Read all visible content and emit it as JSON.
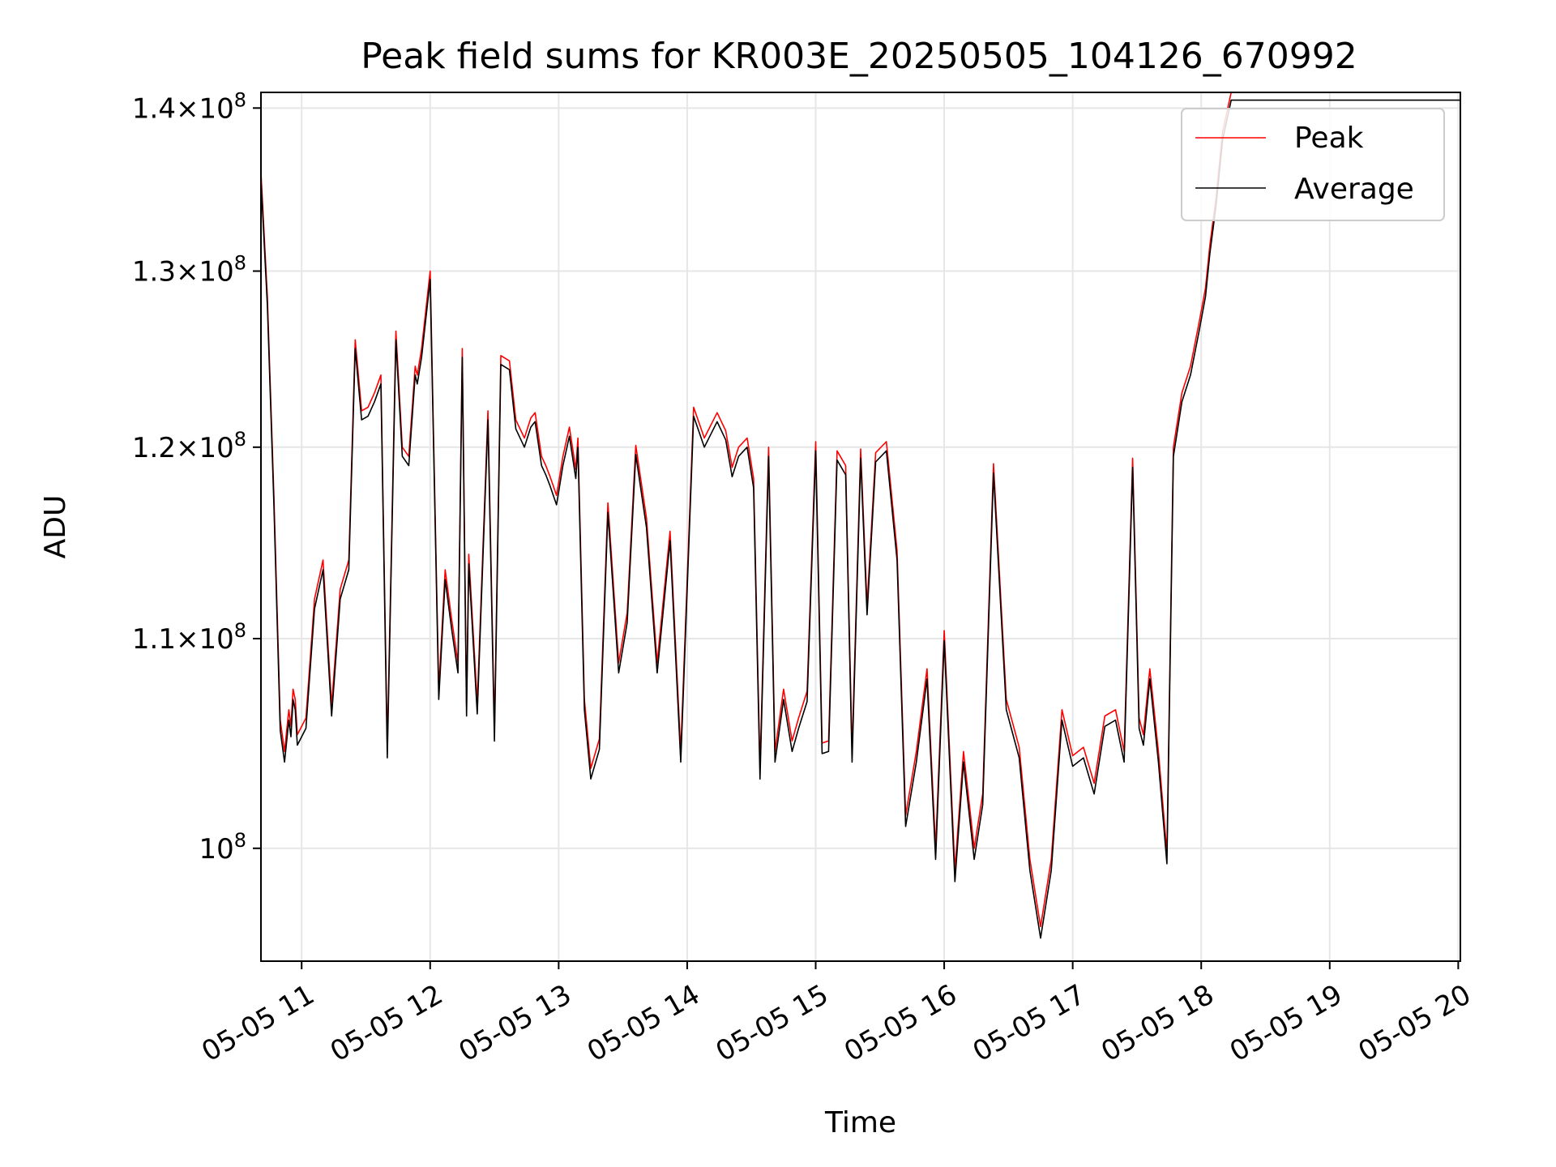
{
  "chart_data": {
    "type": "line",
    "title": "Peak field sums for KR003E_20250505_104126_670992",
    "xlabel": "Time",
    "ylabel": "ADU",
    "y_scale": "log",
    "grid": true,
    "legend_position": "top-right",
    "xlim": [
      "2025-05-05T10:41",
      "2025-05-05T20:01"
    ],
    "ylim": [
      95000000,
      141000000
    ],
    "x_ticks": [
      {
        "t": "2025-05-05T11:00",
        "label": "05-05 11"
      },
      {
        "t": "2025-05-05T12:00",
        "label": "05-05 12"
      },
      {
        "t": "2025-05-05T13:00",
        "label": "05-05 13"
      },
      {
        "t": "2025-05-05T14:00",
        "label": "05-05 14"
      },
      {
        "t": "2025-05-05T15:00",
        "label": "05-05 15"
      },
      {
        "t": "2025-05-05T16:00",
        "label": "05-05 16"
      },
      {
        "t": "2025-05-05T17:00",
        "label": "05-05 17"
      },
      {
        "t": "2025-05-05T18:00",
        "label": "05-05 18"
      },
      {
        "t": "2025-05-05T19:00",
        "label": "05-05 19"
      },
      {
        "t": "2025-05-05T20:00",
        "label": "05-05 20"
      }
    ],
    "y_ticks": [
      {
        "value": 100000000,
        "mant": "",
        "exp": "8"
      },
      {
        "value": 110000000,
        "mant": "1.1",
        "exp": "8"
      },
      {
        "value": 120000000,
        "mant": "1.2",
        "exp": "8"
      },
      {
        "value": 130000000,
        "mant": "1.3",
        "exp": "8"
      },
      {
        "value": 140000000,
        "mant": "1.4",
        "exp": "8"
      }
    ],
    "series": [
      {
        "name": "Peak",
        "color": "#ff0000"
      },
      {
        "name": "Average",
        "color": "#000000"
      }
    ],
    "x": [
      "10:41",
      "10:44",
      "10:47",
      "10:50",
      "10:52",
      "10:54",
      "10:55",
      "10:56",
      "10:57",
      "10:58",
      "11:02",
      "11:06",
      "11:10",
      "11:14",
      "11:18",
      "11:22",
      "11:25",
      "11:28",
      "11:31",
      "11:34",
      "11:37",
      "11:40",
      "11:44",
      "11:47",
      "11:50",
      "11:53",
      "11:54",
      "11:56",
      "12:00",
      "12:04",
      "12:07",
      "12:10",
      "12:13",
      "12:15",
      "12:17",
      "12:18",
      "12:22",
      "12:27",
      "12:30",
      "12:33",
      "12:37",
      "12:40",
      "12:44",
      "12:47",
      "12:49",
      "12:52",
      "12:54",
      "12:56",
      "12:59",
      "13:00",
      "13:02",
      "13:05",
      "13:08",
      "13:09",
      "13:12",
      "13:15",
      "13:19",
      "13:23",
      "13:28",
      "13:32",
      "13:36",
      "13:41",
      "13:46",
      "13:52",
      "13:57",
      "14:03",
      "14:08",
      "14:14",
      "14:18",
      "14:21",
      "14:24",
      "14:28",
      "14:31",
      "14:34",
      "14:38",
      "14:41",
      "14:45",
      "14:49",
      "14:52",
      "14:56",
      "15:00",
      "15:03",
      "15:06",
      "15:10",
      "15:14",
      "15:17",
      "15:21",
      "15:24",
      "15:28",
      "15:33",
      "15:38",
      "15:42",
      "15:47",
      "15:52",
      "15:56",
      "16:00",
      "16:05",
      "16:09",
      "16:14",
      "16:18",
      "16:23",
      "16:29",
      "16:35",
      "16:40",
      "16:45",
      "16:50",
      "16:55",
      "17:00",
      "17:05",
      "17:10",
      "17:15",
      "17:20",
      "17:24",
      "17:28",
      "17:31",
      "17:33",
      "17:36",
      "17:40",
      "17:44",
      "17:47",
      "17:51",
      "17:55",
      "17:59",
      "18:02",
      "18:04",
      "18:07",
      "18:10",
      "18:14",
      "18:18",
      "18:21",
      "18:25",
      "18:29",
      "18:33",
      "18:37",
      "18:41",
      "18:45",
      "18:49",
      "18:53",
      "18:58",
      "19:00",
      "19:05",
      "19:10",
      "19:14",
      "19:19",
      "19:24",
      "19:30",
      "19:35",
      "19:40",
      "19:45",
      "19:50",
      "19:55",
      "20:00",
      "20:01"
    ],
    "average": [
      135500000,
      128000000,
      117000000,
      105500000,
      104000000,
      106000000,
      105200000,
      107000000,
      106500000,
      104800000,
      105600000,
      111500000,
      113500000,
      106200000,
      112000000,
      113500000,
      125500000,
      121500000,
      121700000,
      122500000,
      123500000,
      104200000,
      126000000,
      119500000,
      119000000,
      124000000,
      123500000,
      125000000,
      129500000,
      107000000,
      113000000,
      110500000,
      108300000,
      125000000,
      106200000,
      113800000,
      106300000,
      121500000,
      105000000,
      124600000,
      124300000,
      121000000,
      120000000,
      121100000,
      121400000,
      119000000,
      118500000,
      117900000,
      116900000,
      117600000,
      119000000,
      120600000,
      118300000,
      120000000,
      106500000,
      103200000,
      104600000,
      116500000,
      108300000,
      110800000,
      119600000,
      115700000,
      108300000,
      115000000,
      104000000,
      121700000,
      120000000,
      121400000,
      120400000,
      118400000,
      119500000,
      120000000,
      117800000,
      103200000,
      119500000,
      104000000,
      107000000,
      104500000,
      105600000,
      106900000,
      119800000,
      104400000,
      104500000,
      119300000,
      118500000,
      104000000,
      119400000,
      111200000,
      119200000,
      119800000,
      114000000,
      101000000,
      104000000,
      108000000,
      99500000,
      109900000,
      98500000,
      104000000,
      99500000,
      102000000,
      118600000,
      106500000,
      104200000,
      99000000,
      96000000,
      99000000,
      106000000,
      103800000,
      104200000,
      102500000,
      105700000,
      106000000,
      104000000,
      118900000,
      105600000,
      104800000,
      108000000,
      104000000,
      99300000,
      119500000,
      122500000,
      124000000,
      126500000,
      128500000,
      131000000,
      134000000,
      138000000,
      140500000,
      140500000,
      140500000,
      140500000,
      140500000,
      140500000,
      140500000,
      140500000,
      140500000,
      140500000,
      140500000,
      140500000,
      140500000,
      140500000,
      140500000,
      140500000,
      140500000,
      140500000,
      140500000,
      140500000,
      140500000,
      140500000,
      140500000,
      140500000,
      140500000,
      140500000
    ],
    "peak": [
      136000000,
      128500000,
      117500000,
      106000000,
      104500000,
      106500000,
      105700000,
      107500000,
      107000000,
      105300000,
      106100000,
      112000000,
      114000000,
      106700000,
      112500000,
      114000000,
      126000000,
      122000000,
      122200000,
      123000000,
      124000000,
      104700000,
      126500000,
      120000000,
      119500000,
      124500000,
      124000000,
      125500000,
      130000000,
      107500000,
      113500000,
      111000000,
      108800000,
      125500000,
      106700000,
      114300000,
      106800000,
      122000000,
      105500000,
      125100000,
      124800000,
      121500000,
      120500000,
      121600000,
      121900000,
      119500000,
      119000000,
      118400000,
      117400000,
      118100000,
      119500000,
      121100000,
      118800000,
      120500000,
      107000000,
      103700000,
      105100000,
      117000000,
      108800000,
      111300000,
      120100000,
      116200000,
      108800000,
      115500000,
      104500000,
      122200000,
      120500000,
      121900000,
      120900000,
      118900000,
      120000000,
      120500000,
      118300000,
      103700000,
      120000000,
      104500000,
      107500000,
      105000000,
      106100000,
      107400000,
      120300000,
      104900000,
      105000000,
      119800000,
      119000000,
      104500000,
      119900000,
      111700000,
      119700000,
      120300000,
      114500000,
      101500000,
      104500000,
      108500000,
      100000000,
      110400000,
      99000000,
      104500000,
      100000000,
      102500000,
      119100000,
      107000000,
      104700000,
      99500000,
      96500000,
      99500000,
      106500000,
      104300000,
      104700000,
      103000000,
      106200000,
      106500000,
      104500000,
      119400000,
      106100000,
      105300000,
      108500000,
      104500000,
      99800000,
      120000000,
      123000000,
      124500000,
      127000000,
      129000000,
      131500000,
      134500000,
      138500000,
      141000000,
      141000000,
      141000000,
      141000000,
      141000000,
      141000000,
      141000000,
      141000000,
      141000000,
      141000000,
      141000000,
      141000000,
      141000000,
      141000000,
      141000000,
      141000000,
      141000000,
      141000000,
      141000000,
      141000000,
      141000000,
      141000000,
      141000000,
      141000000,
      141000000,
      141000000
    ]
  }
}
